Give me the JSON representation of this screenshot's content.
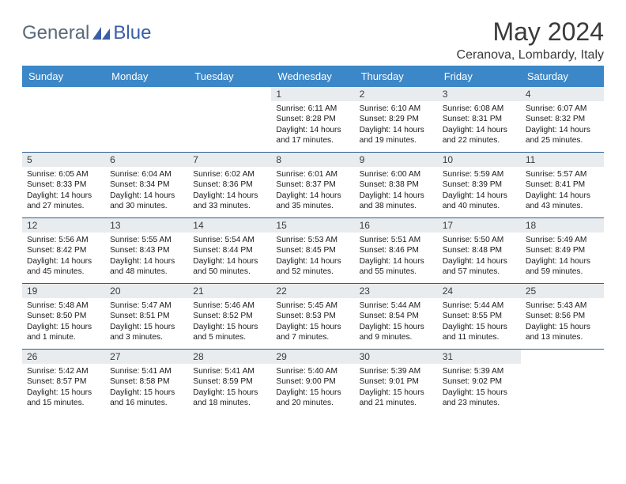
{
  "logo": {
    "part1": "General",
    "part2": "Blue"
  },
  "title": "May 2024",
  "location": "Ceranova, Lombardy, Italy",
  "colors": {
    "header_bg": "#3b87c8",
    "header_text": "#ffffff",
    "daynum_bg": "#e8ecef",
    "rule": "#2f5f95",
    "logo_gray": "#5a6a7a",
    "logo_blue": "#3a5fa8"
  },
  "day_labels": [
    "Sunday",
    "Monday",
    "Tuesday",
    "Wednesday",
    "Thursday",
    "Friday",
    "Saturday"
  ],
  "weeks": [
    {
      "nums": [
        "",
        "",
        "",
        "1",
        "2",
        "3",
        "4"
      ],
      "info": [
        "",
        "",
        "",
        "Sunrise: 6:11 AM\nSunset: 8:28 PM\nDaylight: 14 hours and 17 minutes.",
        "Sunrise: 6:10 AM\nSunset: 8:29 PM\nDaylight: 14 hours and 19 minutes.",
        "Sunrise: 6:08 AM\nSunset: 8:31 PM\nDaylight: 14 hours and 22 minutes.",
        "Sunrise: 6:07 AM\nSunset: 8:32 PM\nDaylight: 14 hours and 25 minutes."
      ]
    },
    {
      "nums": [
        "5",
        "6",
        "7",
        "8",
        "9",
        "10",
        "11"
      ],
      "info": [
        "Sunrise: 6:05 AM\nSunset: 8:33 PM\nDaylight: 14 hours and 27 minutes.",
        "Sunrise: 6:04 AM\nSunset: 8:34 PM\nDaylight: 14 hours and 30 minutes.",
        "Sunrise: 6:02 AM\nSunset: 8:36 PM\nDaylight: 14 hours and 33 minutes.",
        "Sunrise: 6:01 AM\nSunset: 8:37 PM\nDaylight: 14 hours and 35 minutes.",
        "Sunrise: 6:00 AM\nSunset: 8:38 PM\nDaylight: 14 hours and 38 minutes.",
        "Sunrise: 5:59 AM\nSunset: 8:39 PM\nDaylight: 14 hours and 40 minutes.",
        "Sunrise: 5:57 AM\nSunset: 8:41 PM\nDaylight: 14 hours and 43 minutes."
      ]
    },
    {
      "nums": [
        "12",
        "13",
        "14",
        "15",
        "16",
        "17",
        "18"
      ],
      "info": [
        "Sunrise: 5:56 AM\nSunset: 8:42 PM\nDaylight: 14 hours and 45 minutes.",
        "Sunrise: 5:55 AM\nSunset: 8:43 PM\nDaylight: 14 hours and 48 minutes.",
        "Sunrise: 5:54 AM\nSunset: 8:44 PM\nDaylight: 14 hours and 50 minutes.",
        "Sunrise: 5:53 AM\nSunset: 8:45 PM\nDaylight: 14 hours and 52 minutes.",
        "Sunrise: 5:51 AM\nSunset: 8:46 PM\nDaylight: 14 hours and 55 minutes.",
        "Sunrise: 5:50 AM\nSunset: 8:48 PM\nDaylight: 14 hours and 57 minutes.",
        "Sunrise: 5:49 AM\nSunset: 8:49 PM\nDaylight: 14 hours and 59 minutes."
      ]
    },
    {
      "nums": [
        "19",
        "20",
        "21",
        "22",
        "23",
        "24",
        "25"
      ],
      "info": [
        "Sunrise: 5:48 AM\nSunset: 8:50 PM\nDaylight: 15 hours and 1 minute.",
        "Sunrise: 5:47 AM\nSunset: 8:51 PM\nDaylight: 15 hours and 3 minutes.",
        "Sunrise: 5:46 AM\nSunset: 8:52 PM\nDaylight: 15 hours and 5 minutes.",
        "Sunrise: 5:45 AM\nSunset: 8:53 PM\nDaylight: 15 hours and 7 minutes.",
        "Sunrise: 5:44 AM\nSunset: 8:54 PM\nDaylight: 15 hours and 9 minutes.",
        "Sunrise: 5:44 AM\nSunset: 8:55 PM\nDaylight: 15 hours and 11 minutes.",
        "Sunrise: 5:43 AM\nSunset: 8:56 PM\nDaylight: 15 hours and 13 minutes."
      ]
    },
    {
      "nums": [
        "26",
        "27",
        "28",
        "29",
        "30",
        "31",
        ""
      ],
      "info": [
        "Sunrise: 5:42 AM\nSunset: 8:57 PM\nDaylight: 15 hours and 15 minutes.",
        "Sunrise: 5:41 AM\nSunset: 8:58 PM\nDaylight: 15 hours and 16 minutes.",
        "Sunrise: 5:41 AM\nSunset: 8:59 PM\nDaylight: 15 hours and 18 minutes.",
        "Sunrise: 5:40 AM\nSunset: 9:00 PM\nDaylight: 15 hours and 20 minutes.",
        "Sunrise: 5:39 AM\nSunset: 9:01 PM\nDaylight: 15 hours and 21 minutes.",
        "Sunrise: 5:39 AM\nSunset: 9:02 PM\nDaylight: 15 hours and 23 minutes.",
        ""
      ]
    }
  ]
}
